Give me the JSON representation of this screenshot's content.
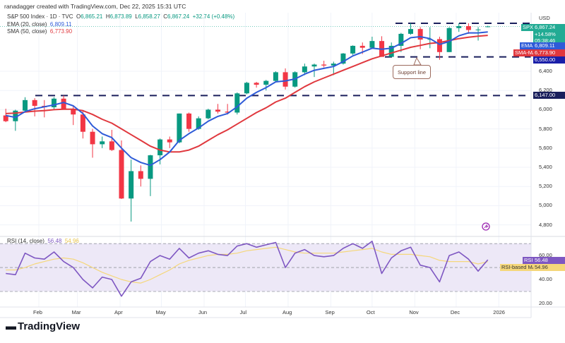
{
  "credit": "ranadagger created with TradingView.com, Dec 22, 2025 15:31 UTC",
  "legend": {
    "symbol": "S&P 500 Index · 1D · TVC",
    "open_label": "O",
    "open": "6,865.21",
    "high_label": "H",
    "high": "6,873.89",
    "low_label": "L",
    "low": "6,858.27",
    "close_label": "C",
    "close": "6,867.24",
    "change": "+32.74 (+0.48%)",
    "ema_label": "EMA (20, close)",
    "ema_value": "6,809.11",
    "sma_label": "SMA (50, close)",
    "sma_value": "6,773.90",
    "rsi_label": "RSI (14, close)",
    "rsi_value": "56.48",
    "rsi_ma_value": "54.96"
  },
  "currency": "USD",
  "badges": {
    "spx_tag": "SPX",
    "spx_price": "6,867.24",
    "spx_change": "+14.58%",
    "spx_countdown": "05:38:46",
    "ema_tag": "EMA",
    "ema_price": "6,809.11",
    "sma_tag": "SMA-MA",
    "sma_price": "6,773.90",
    "line_6550": "6,550.00",
    "line_6147": "6,147.00",
    "rsi_tag": "RSI",
    "rsi_val": "56.48",
    "rsi_ma_tag": "RSI-based MA",
    "rsi_ma_val": "54.96"
  },
  "annotation": "Support line",
  "logo": "TradingView",
  "colors": {
    "up": "#089981",
    "down": "#f23645",
    "ema": "#2e5bd8",
    "sma": "#e0383e",
    "rsi": "#7e57c2",
    "rsi_ma": "#f5d77a",
    "hline": "#1a1f5c",
    "spx": "#22ab94"
  },
  "chart_data": [
    {
      "type": "candlestick",
      "title": "S&P 500 Index · 1D · TVC",
      "ylim": [
        4680,
        7010
      ],
      "y_ticks": [
        "6,400",
        "6,200",
        "6,000",
        "5,800",
        "5,600",
        "5,400",
        "5,200",
        "5,000",
        "4,800"
      ],
      "y_tick_values": [
        6400,
        6200,
        6000,
        5800,
        5600,
        5400,
        5200,
        5000,
        4800
      ],
      "x_ticks": [
        "Feb",
        "Mar",
        "Apr",
        "May",
        "Jun",
        "Jul",
        "Aug",
        "Sep",
        "Oct",
        "Nov",
        "Dec",
        "2026"
      ],
      "x_tick_dates": [
        "2025-02-01",
        "2025-03-01",
        "2025-04-01",
        "2025-05-01",
        "2025-06-01",
        "2025-07-01",
        "2025-08-01",
        "2025-09-01",
        "2025-10-01",
        "2025-11-01",
        "2025-12-01",
        "2026-01-01"
      ],
      "dates": [
        "2025-01-06",
        "2025-01-13",
        "2025-01-20",
        "2025-01-27",
        "2025-02-03",
        "2025-02-10",
        "2025-02-17",
        "2025-02-24",
        "2025-03-03",
        "2025-03-10",
        "2025-03-17",
        "2025-03-24",
        "2025-03-31",
        "2025-04-07",
        "2025-04-14",
        "2025-04-21",
        "2025-04-28",
        "2025-05-05",
        "2025-05-12",
        "2025-05-19",
        "2025-05-26",
        "2025-06-02",
        "2025-06-09",
        "2025-06-16",
        "2025-06-23",
        "2025-06-30",
        "2025-07-07",
        "2025-07-14",
        "2025-07-21",
        "2025-07-28",
        "2025-08-04",
        "2025-08-11",
        "2025-08-18",
        "2025-08-25",
        "2025-09-01",
        "2025-09-08",
        "2025-09-15",
        "2025-09-22",
        "2025-09-29",
        "2025-10-06",
        "2025-10-13",
        "2025-10-20",
        "2025-10-27",
        "2025-11-03",
        "2025-11-10",
        "2025-11-17",
        "2025-11-24",
        "2025-12-01",
        "2025-12-08",
        "2025-12-15",
        "2025-12-22"
      ],
      "ohlc": [
        [
          5940,
          6010,
          5870,
          5880
        ],
        [
          5880,
          6000,
          5780,
          5990
        ],
        [
          5990,
          6130,
          5980,
          6100
        ],
        [
          6100,
          6120,
          5930,
          6040
        ],
        [
          6040,
          6100,
          5920,
          6025
        ],
        [
          6025,
          6130,
          6000,
          6115
        ],
        [
          6115,
          6147,
          6000,
          6010
        ],
        [
          6010,
          6040,
          5840,
          5950
        ],
        [
          5950,
          5990,
          5700,
          5770
        ],
        [
          5770,
          5800,
          5500,
          5640
        ],
        [
          5640,
          5720,
          5600,
          5670
        ],
        [
          5670,
          5790,
          5570,
          5580
        ],
        [
          5580,
          5680,
          5070,
          5075
        ],
        [
          5075,
          5480,
          4835,
          5360
        ],
        [
          5360,
          5420,
          5200,
          5280
        ],
        [
          5280,
          5530,
          5100,
          5525
        ],
        [
          5525,
          5700,
          5430,
          5690
        ],
        [
          5690,
          5720,
          5600,
          5660
        ],
        [
          5660,
          5960,
          5650,
          5960
        ],
        [
          5960,
          5970,
          5770,
          5800
        ],
        [
          5800,
          5930,
          5790,
          5910
        ],
        [
          5910,
          6010,
          5900,
          6000
        ],
        [
          6000,
          6060,
          5960,
          5980
        ],
        [
          5980,
          6060,
          5950,
          5970
        ],
        [
          5970,
          6180,
          5950,
          6170
        ],
        [
          6170,
          6290,
          6160,
          6280
        ],
        [
          6280,
          6290,
          6230,
          6260
        ],
        [
          6260,
          6310,
          6200,
          6300
        ],
        [
          6300,
          6400,
          6290,
          6390
        ],
        [
          6390,
          6430,
          6210,
          6240
        ],
        [
          6240,
          6400,
          6230,
          6390
        ],
        [
          6390,
          6480,
          6360,
          6450
        ],
        [
          6450,
          6480,
          6340,
          6470
        ],
        [
          6470,
          6510,
          6440,
          6460
        ],
        [
          6460,
          6500,
          6360,
          6480
        ],
        [
          6480,
          6590,
          6470,
          6585
        ],
        [
          6585,
          6670,
          6570,
          6665
        ],
        [
          6665,
          6700,
          6580,
          6645
        ],
        [
          6645,
          6760,
          6640,
          6715
        ],
        [
          6715,
          6765,
          6550,
          6550
        ],
        [
          6550,
          6700,
          6550,
          6665
        ],
        [
          6665,
          6800,
          6600,
          6790
        ],
        [
          6790,
          6900,
          6780,
          6840
        ],
        [
          6840,
          6860,
          6630,
          6730
        ],
        [
          6730,
          6860,
          6640,
          6735
        ],
        [
          6735,
          6760,
          6520,
          6600
        ],
        [
          6600,
          6860,
          6600,
          6850
        ],
        [
          6850,
          6900,
          6810,
          6870
        ],
        [
          6870,
          6900,
          6790,
          6830
        ],
        [
          6830,
          6860,
          6720,
          6835
        ],
        [
          6865.21,
          6873.89,
          6858.27,
          6867.24
        ]
      ],
      "series": [
        {
          "name": "EMA (20, close)",
          "values": [
            5940,
            5920,
            5980,
            6010,
            6030,
            6050,
            6075,
            6040,
            5960,
            5830,
            5750,
            5710,
            5600,
            5500,
            5450,
            5420,
            5480,
            5560,
            5680,
            5750,
            5810,
            5880,
            5930,
            5960,
            6030,
            6120,
            6180,
            6230,
            6290,
            6300,
            6320,
            6370,
            6410,
            6430,
            6450,
            6500,
            6560,
            6600,
            6640,
            6630,
            6640,
            6690,
            6750,
            6760,
            6740,
            6680,
            6710,
            6770,
            6800,
            6800,
            6809.11
          ]
        },
        {
          "name": "SMA (50, close)",
          "values": [
            5960,
            5965,
            5975,
            5985,
            5990,
            6000,
            6005,
            6005,
            5990,
            5950,
            5900,
            5860,
            5800,
            5740,
            5680,
            5620,
            5580,
            5560,
            5560,
            5580,
            5620,
            5680,
            5740,
            5790,
            5850,
            5910,
            5970,
            6020,
            6080,
            6120,
            6180,
            6240,
            6290,
            6330,
            6370,
            6410,
            6450,
            6490,
            6530,
            6560,
            6590,
            6620,
            6650,
            6670,
            6690,
            6700,
            6720,
            6740,
            6755,
            6765,
            6773.9
          ]
        }
      ],
      "horizontal_lines": [
        6900,
        6550,
        6147
      ]
    },
    {
      "type": "line",
      "title": "RSI (14, close)",
      "ylim": [
        17,
        76
      ],
      "y_ticks": [
        "60.00",
        "40.00",
        "20.00"
      ],
      "y_tick_values": [
        60,
        40,
        20
      ],
      "bands": [
        70,
        50,
        30
      ],
      "series": [
        {
          "name": "RSI",
          "values": [
            45,
            44,
            62,
            58,
            57,
            63,
            55,
            50,
            40,
            33,
            42,
            40,
            26,
            38,
            41,
            55,
            60,
            57,
            66,
            58,
            62,
            64,
            61,
            60,
            68,
            70,
            67,
            69,
            71,
            50,
            62,
            65,
            60,
            59,
            60,
            66,
            70,
            66,
            72,
            45,
            58,
            64,
            67,
            52,
            50,
            38,
            60,
            63,
            57,
            47,
            56.48
          ]
        },
        {
          "name": "RSI-based MA",
          "values": [
            48,
            48,
            50,
            53,
            55,
            57,
            58,
            57,
            54,
            50,
            46,
            43,
            40,
            38,
            37,
            40,
            44,
            48,
            53,
            56,
            58,
            60,
            61,
            61,
            62,
            64,
            65,
            66,
            67,
            65,
            63,
            62,
            62,
            62,
            62,
            63,
            64,
            65,
            66,
            63,
            61,
            61,
            61,
            60,
            59,
            56,
            55,
            55,
            55,
            53,
            54.96
          ]
        }
      ]
    }
  ]
}
